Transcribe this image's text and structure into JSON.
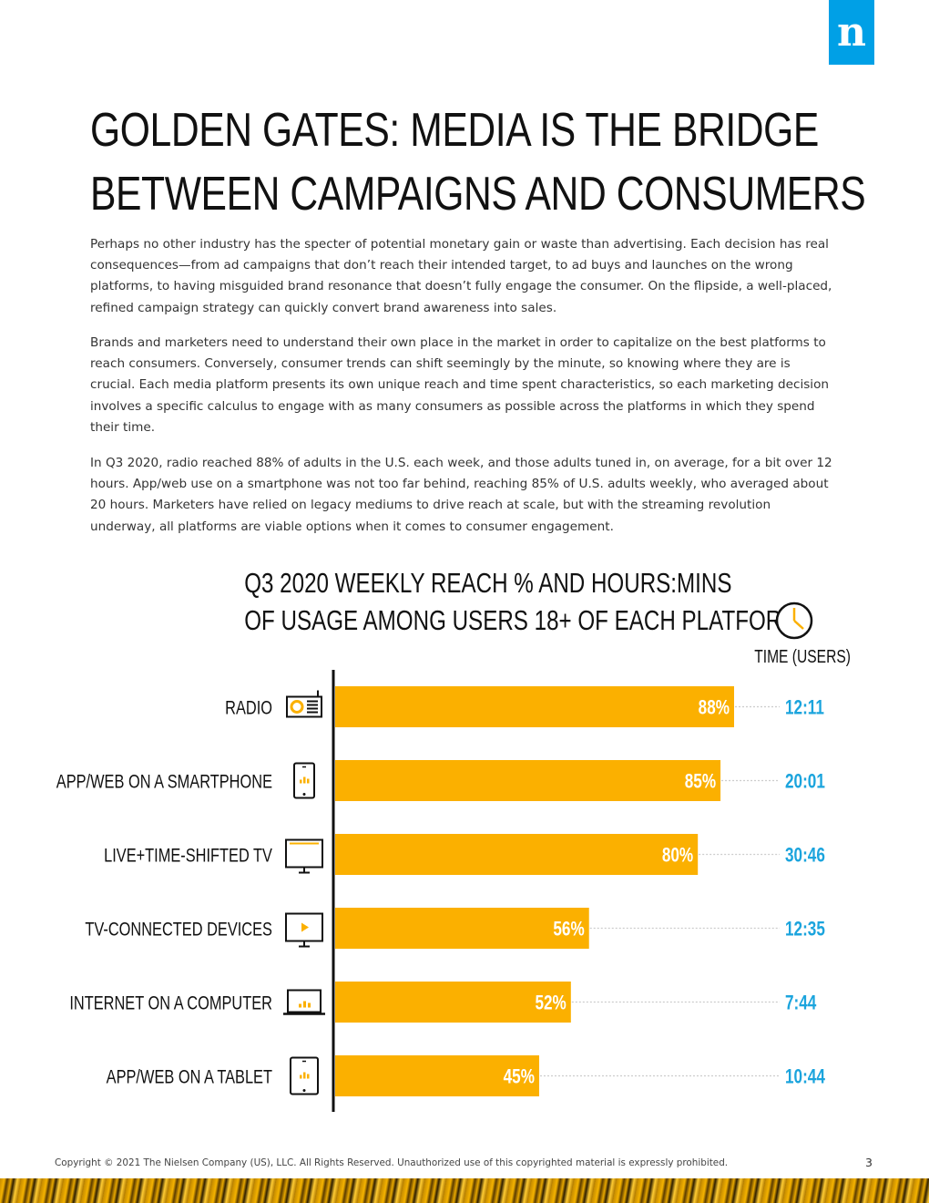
{
  "brand": {
    "logo_letter": "n",
    "color": "#00a0e6"
  },
  "headline": {
    "line1": "GOLDEN GATES: MEDIA IS THE BRIDGE",
    "line2": "BETWEEN CAMPAIGNS AND CONSUMERS"
  },
  "paragraphs": [
    "Perhaps no other industry has the specter of potential monetary gain or waste than advertising. Each decision has real consequences—from ad campaigns that don’t reach their intended target, to ad buys and launches on the wrong platforms, to having misguided brand resonance that doesn’t fully engage the consumer. On the flipside, a well-placed, refined campaign strategy can quickly convert brand awareness into sales.",
    "Brands and marketers need to understand their own place in the market in order to capitalize on the best platforms to reach consumers. Conversely, consumer trends can shift seemingly by the minute, so knowing where they are is crucial. Each media platform presents its own unique reach and time spent characteristics, so each marketing decision involves a specific calculus to engage with as many consumers as possible across the platforms in which they spend their time.",
    "In Q3 2020, radio reached 88% of adults in the U.S. each week, and those adults tuned in, on average, for a bit over 12 hours. App/web use on a smartphone was not too far behind, reaching 85% of U.S. adults weekly, who averaged about 20 hours. Marketers have relied on legacy mediums to drive reach at scale, but with the streaming revolution underway, all platforms are viable options when it comes to consumer engagement."
  ],
  "chart_data": {
    "type": "bar",
    "orientation": "horizontal",
    "title": "Q3 2020 WEEKLY REACH % AND HOURS:MINS OF USAGE AMONG USERS 18+ OF EACH PLATFORM",
    "title_lines": [
      "Q3 2020 WEEKLY REACH % AND HOURS:MINS",
      "OF USAGE AMONG USERS 18+ OF EACH PLATFORM"
    ],
    "time_header": "TIME (USERS)",
    "categories": [
      "RADIO",
      "APP/WEB ON A SMARTPHONE",
      "LIVE+TIME-SHIFTED TV",
      "TV-CONNECTED DEVICES",
      "INTERNET ON A COMPUTER",
      "APP/WEB ON A TABLET"
    ],
    "icons": [
      "radio-icon",
      "smartphone-icon",
      "tv-icon",
      "tv-connected-device-icon",
      "computer-icon",
      "tablet-icon"
    ],
    "values": [
      88,
      85,
      80,
      56,
      52,
      45
    ],
    "value_labels": [
      "88%",
      "85%",
      "80%",
      "56%",
      "52%",
      "45%"
    ],
    "times": [
      "12:11",
      "20:01",
      "30:46",
      "12:35",
      "7:44",
      "10:44"
    ],
    "xlim": [
      0,
      100
    ],
    "bar_color": "#fbb000",
    "time_color": "#1ba4dd"
  },
  "footer": {
    "copyright": "Copyright © 2021 The Nielsen Company (US), LLC. All Rights Reserved. Unauthorized use of this copyrighted material is expressly prohibited.",
    "page_number": "3"
  }
}
